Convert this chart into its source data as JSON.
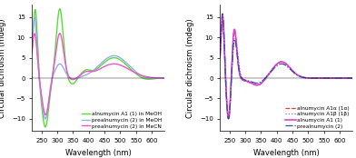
{
  "xlim": [
    220,
    640
  ],
  "ylim_left": [
    -13,
    18
  ],
  "ylim_right": [
    -13,
    18
  ],
  "xlabel": "Wavelength (nm)",
  "ylabel": "Circular dichroism (mdeg)",
  "left_legend": [
    {
      "label": "alnumycin A1 (1) in MeOH",
      "color": "#55dd33",
      "lw": 1.0,
      "ls": "-"
    },
    {
      "label": "prealnumycin (2) in MeOH",
      "color": "#99aaee",
      "lw": 1.0,
      "ls": "-"
    },
    {
      "label": "prealnumycin (2) in MeCN",
      "color": "#ee55cc",
      "lw": 1.0,
      "ls": "-"
    }
  ],
  "right_legend": [
    {
      "label": "alnumycin A1α (1α)",
      "color": "#ee3333",
      "lw": 0.9,
      "ls": "--"
    },
    {
      "label": "alnumycin A1β (1β)",
      "color": "#7777ee",
      "lw": 0.9,
      "ls": ":"
    },
    {
      "label": "alnumycin A1 (1)",
      "color": "#dd44cc",
      "lw": 1.2,
      "ls": "-"
    },
    {
      "label": "prealnumycin (2)",
      "color": "#4444aa",
      "lw": 0.9,
      "ls": "-."
    }
  ],
  "yticks_left": [
    -10,
    -5,
    0,
    5,
    10,
    15
  ],
  "yticks_right": [
    -10,
    -5,
    0,
    5,
    10,
    15
  ],
  "xticks": [
    250,
    300,
    350,
    400,
    450,
    500,
    550,
    600
  ],
  "tick_fontsize": 5,
  "label_fontsize": 6,
  "legend_fontsize": 4.2
}
